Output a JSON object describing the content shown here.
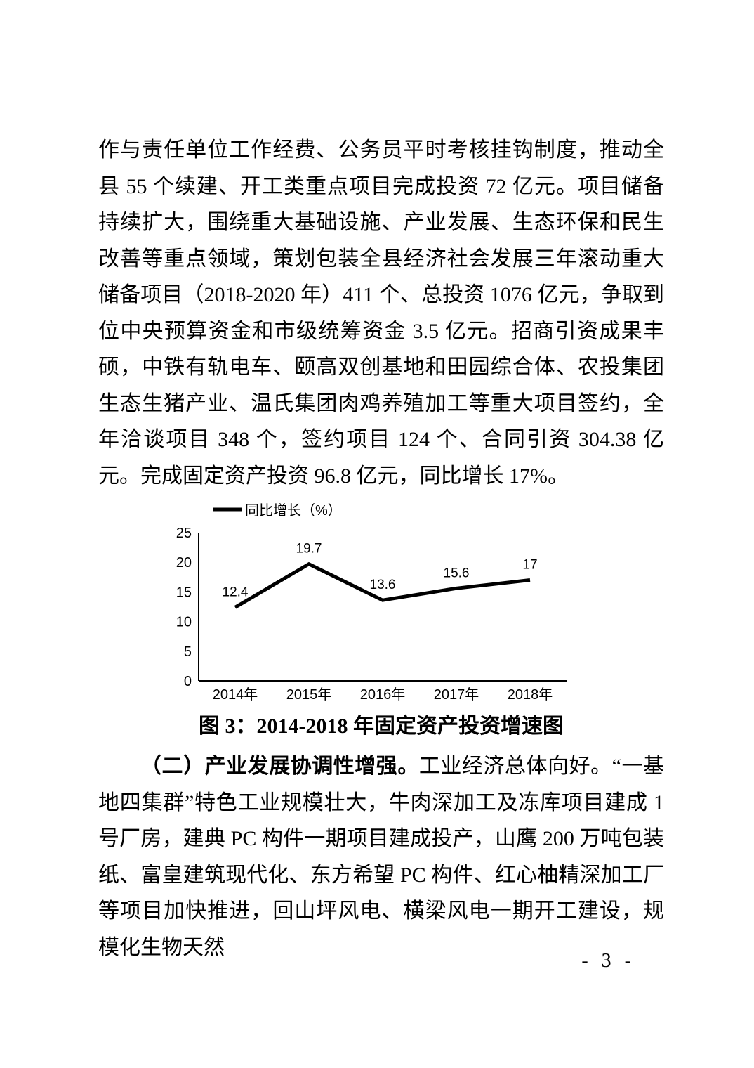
{
  "page": {
    "number": "- 3 -"
  },
  "paragraph1": {
    "text": "作与责任单位工作经费、公务员平时考核挂钩制度，推动全县 55 个续建、开工类重点项目完成投资 72 亿元。项目储备持续扩大，围绕重大基础设施、产业发展、生态环保和民生改善等重点领域，策划包装全县经济社会发展三年滚动重大储备项目（2018-2020 年）411 个、总投资 1076 亿元，争取到位中央预算资金和市级统筹资金 3.5 亿元。招商引资成果丰硕，中铁有轨电车、颐高双创基地和田园综合体、农投集团生态生猪产业、温氏集团肉鸡养殖加工等重大项目签约，全年洽谈项目 348 个，签约项目 124 个、合同引资 304.38 亿元。完成固定资产投资 96.8 亿元，同比增长 17%。"
  },
  "chart_data": {
    "type": "line",
    "title": "",
    "legend": "同比增长（%）",
    "categories": [
      "2014年",
      "2015年",
      "2016年",
      "2017年",
      "2018年"
    ],
    "values": [
      12.4,
      19.7,
      13.6,
      15.6,
      17
    ],
    "labels": [
      "12.4",
      "19.7",
      "13.6",
      "15.6",
      "17"
    ],
    "y_ticks": [
      0,
      5,
      10,
      15,
      20,
      25
    ],
    "ylim": [
      0,
      25
    ],
    "xlabel": "",
    "ylabel": "",
    "grid": false,
    "legend_position": "top-left",
    "line_color": "#000000"
  },
  "figure_caption": "图 3：2014-2018 年固定资产投资增速图",
  "paragraph2": {
    "lead": "（二）产业发展协调性增强。",
    "text": "工业经济总体向好。“一基地四集群”特色工业规模壮大，牛肉深加工及冻库项目建成 1 号厂房，建典 PC 构件一期项目建成投产，山鹰 200 万吨包装纸、富皇建筑现代化、东方希望 PC 构件、红心柚精深加工厂等项目加快推进，回山坪风电、横梁风电一期开工建设，规模化生物天然"
  }
}
